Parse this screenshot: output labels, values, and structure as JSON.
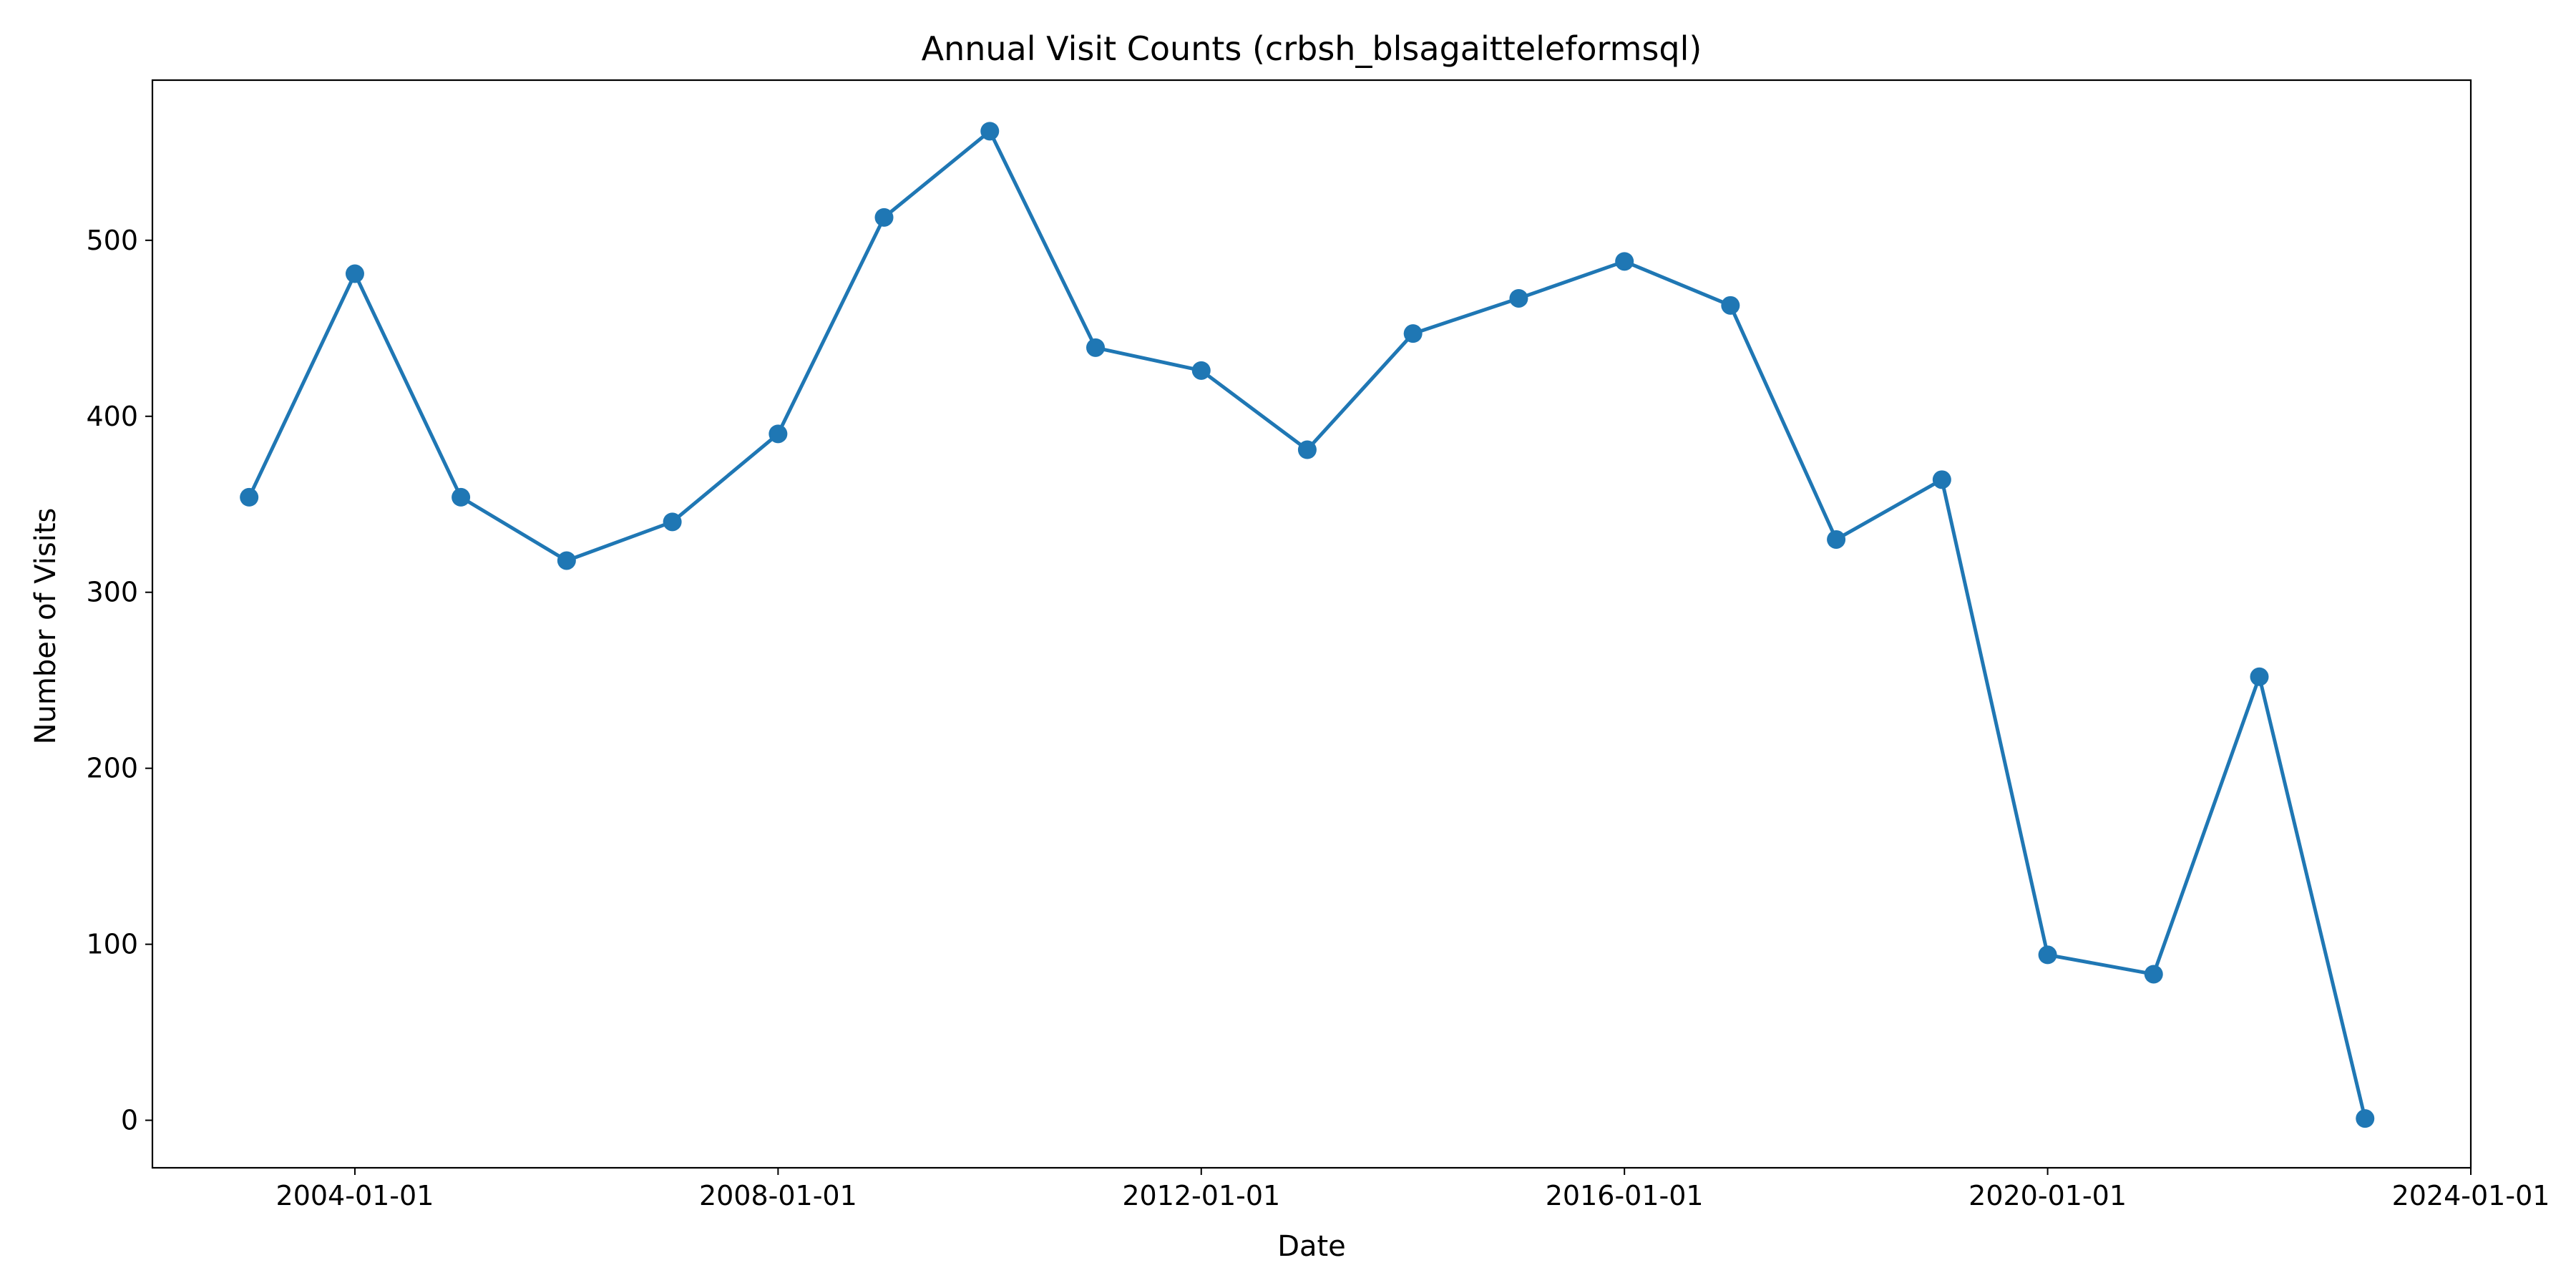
{
  "chart_data": {
    "type": "line",
    "title": "Annual Visit Counts (crbsh_blsagaitteleformsql)",
    "xlabel": "Date",
    "ylabel": "Number of Visits",
    "x_tick_labels": [
      "2004-01-01",
      "2008-01-01",
      "2012-01-01",
      "2016-01-01",
      "2020-01-01",
      "2024-01-01"
    ],
    "y_tick_labels": [
      "0",
      "100",
      "200",
      "300",
      "400",
      "500"
    ],
    "x_range": [
      "2002-02-01",
      "2024-01-01"
    ],
    "y_range": [
      -27,
      591
    ],
    "grid": false,
    "legend": "none",
    "color": "#1f77b4",
    "series": [
      {
        "x": [
          "2003-01-01",
          "2004-01-01",
          "2005-01-01",
          "2006-01-01",
          "2007-01-01",
          "2008-01-01",
          "2009-01-01",
          "2010-01-01",
          "2011-01-01",
          "2012-01-01",
          "2013-01-01",
          "2014-01-01",
          "2015-01-01",
          "2016-01-01",
          "2017-01-01",
          "2018-01-01",
          "2019-01-01",
          "2020-01-01",
          "2021-01-01",
          "2022-01-01",
          "2023-01-01"
        ],
        "y": [
          354,
          481,
          354,
          318,
          340,
          390,
          513,
          562,
          439,
          426,
          381,
          447,
          467,
          488,
          463,
          330,
          364,
          94,
          83,
          252,
          1
        ]
      }
    ]
  }
}
